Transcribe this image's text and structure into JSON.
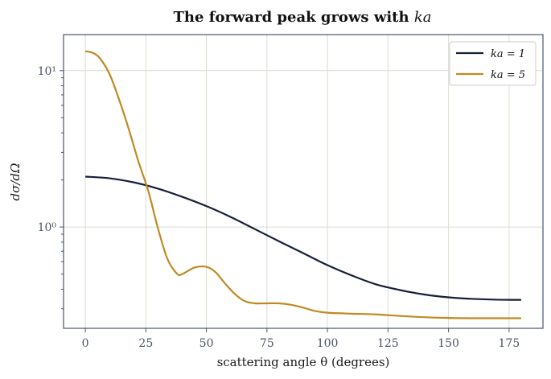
{
  "chart_data": {
    "type": "line",
    "title": "The forward peak grows with ka",
    "title_main": "The forward peak grows with ",
    "title_math": "ka",
    "xlabel": "scattering angle θ (degrees)",
    "ylabel": "dσ/dΩ",
    "x_scale": "linear",
    "y_scale": "log",
    "xlim": [
      -9,
      189
    ],
    "ylim": [
      0.225,
      17
    ],
    "x_ticks": [
      0,
      25,
      50,
      75,
      100,
      125,
      150,
      175
    ],
    "x_tick_labels": [
      "0",
      "25",
      "50",
      "75",
      "100",
      "125",
      "150",
      "175"
    ],
    "y_ticks_major": [
      1,
      10
    ],
    "y_tick_labels_major": [
      "10⁰",
      "10¹"
    ],
    "y_ticks_minor": [
      0.3,
      0.4,
      0.5,
      0.6,
      0.7,
      0.8,
      0.9,
      2,
      3,
      4,
      5,
      6,
      7,
      8,
      9
    ],
    "grid": true,
    "legend_position": "top-right",
    "series": [
      {
        "name": "ka = 1",
        "color": "#15203b",
        "x": [
          0,
          10,
          20,
          30,
          40,
          50,
          60,
          70,
          80,
          90,
          100,
          110,
          120,
          130,
          140,
          150,
          160,
          170,
          180
        ],
        "y": [
          2.1,
          2.05,
          1.93,
          1.76,
          1.56,
          1.36,
          1.16,
          0.97,
          0.81,
          0.68,
          0.57,
          0.49,
          0.43,
          0.395,
          0.37,
          0.355,
          0.347,
          0.343,
          0.342
        ]
      },
      {
        "name": "ka = 5",
        "color": "#bf8a22",
        "x": [
          0,
          3,
          6,
          10,
          14,
          18,
          22,
          26,
          30,
          34,
          38,
          40,
          42,
          45,
          48,
          51,
          54,
          58,
          62,
          66,
          70,
          75,
          80,
          85,
          90,
          95,
          100,
          110,
          120,
          130,
          140,
          150,
          160,
          170,
          180
        ],
        "y": [
          13.3,
          13.0,
          12.0,
          9.5,
          6.5,
          4.2,
          2.6,
          1.7,
          0.98,
          0.62,
          0.5,
          0.5,
          0.52,
          0.55,
          0.56,
          0.55,
          0.51,
          0.43,
          0.37,
          0.335,
          0.325,
          0.325,
          0.325,
          0.318,
          0.305,
          0.29,
          0.283,
          0.279,
          0.276,
          0.27,
          0.265,
          0.262,
          0.261,
          0.261,
          0.261
        ]
      }
    ]
  }
}
